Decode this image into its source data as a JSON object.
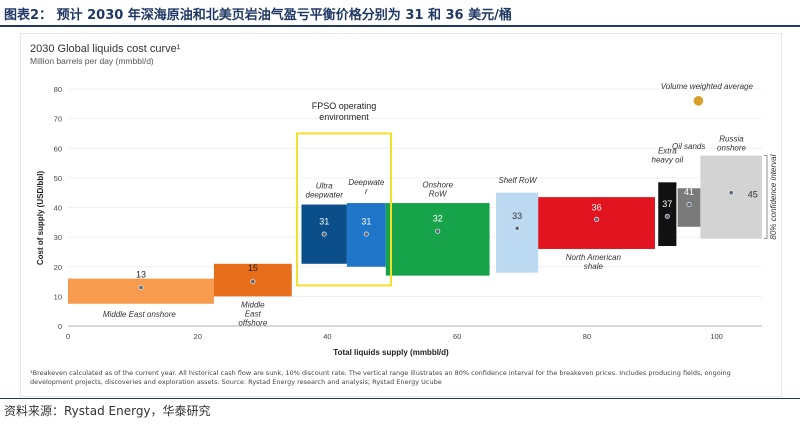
{
  "figure_title": "图表2： 预计 2030 年深海原油和北美页岩油气盈亏平衡价格分别为 31 和 36 美元/桶",
  "source": "资料来源：Rystad Energy，华泰研究",
  "footnote": "¹Breakeven calculated as of the current year. All historical cash flow are sunk, 10% discount rate. The vertical range illustrates an 80% confidence interval for the breakeven prices. Includes producing fields, ongoing development projects, discoveries and exploration assets. Source: Rystad Energy research and analysis; Rystad Energy Ucube",
  "colors": {
    "middle_east_onshore": "#f79b4f",
    "middle_east_offshore": "#e86e1c",
    "ultra_deepwater": "#0a4f8a",
    "deepwater": "#1f76c9",
    "onshore_row": "#17a34a",
    "shelf_row": "#bcd9f2",
    "north_american_shale": "#e1141f",
    "extra_heavy_oil": "#111111",
    "oil_sands": "#7a7a7a",
    "russia_onshore": "#d3d3d3",
    "fpso_box": "#f2e12b",
    "volume_weighted_average": "#d8a02a"
  },
  "chart_data": {
    "type": "bar",
    "title": "2030 Global liquids cost curve¹",
    "subtitle": "Million barrels per day (mmbbl/d)",
    "xlabel": "Total liquids supply (mmbbl/d)",
    "ylabel": "Cost of supply (USD/bbl)",
    "xlim": [
      0,
      107
    ],
    "ylim": [
      0,
      80
    ],
    "xticks": [
      0,
      20,
      40,
      60,
      80,
      100
    ],
    "yticks": [
      0,
      10,
      20,
      30,
      40,
      50,
      60,
      70,
      80
    ],
    "legend": "Volume weighted average",
    "confidence_note": "80% confidence interval",
    "fpso_label": "FPSO operating environment",
    "series": [
      {
        "name": "Middle East onshore",
        "value": 13,
        "x_start": 0,
        "x_end": 22.5,
        "low": 7.5,
        "high": 16,
        "color": "#f79b4f"
      },
      {
        "name": "Middle East offshore",
        "value": 15,
        "x_start": 22.5,
        "x_end": 34.5,
        "low": 10,
        "high": 21,
        "color": "#e86e1c"
      },
      {
        "name": "Ultra deepwater",
        "value": 31,
        "x_start": 36,
        "x_end": 43,
        "low": 21,
        "high": 41,
        "color": "#0a4f8a"
      },
      {
        "name": "Deepwater",
        "value": 31,
        "x_start": 43,
        "x_end": 49,
        "low": 20,
        "high": 41.5,
        "color": "#1f76c9"
      },
      {
        "name": "Onshore RoW",
        "value": 32,
        "x_start": 49,
        "x_end": 65,
        "low": 17,
        "high": 41.5,
        "color": "#17a34a"
      },
      {
        "name": "Shelf RoW",
        "value": 33,
        "x_start": 66,
        "x_end": 72.5,
        "low": 18,
        "high": 45,
        "color": "#bcd9f2"
      },
      {
        "name": "North American shale",
        "value": 36,
        "x_start": 72.5,
        "x_end": 90.5,
        "low": 26,
        "high": 43.5,
        "color": "#e1141f"
      },
      {
        "name": "Extra heavy oil",
        "value": 37,
        "x_start": 91,
        "x_end": 93.8,
        "low": 27,
        "high": 48.5,
        "color": "#111111"
      },
      {
        "name": "Oil sands",
        "value": 41,
        "x_start": 94,
        "x_end": 97.5,
        "low": 33.5,
        "high": 46.5,
        "color": "#7a7a7a"
      },
      {
        "name": "Russia onshore",
        "value": 45,
        "x_start": 97.5,
        "x_end": 107,
        "low": 29.5,
        "high": 57.5,
        "color": "#d3d3d3"
      }
    ]
  }
}
